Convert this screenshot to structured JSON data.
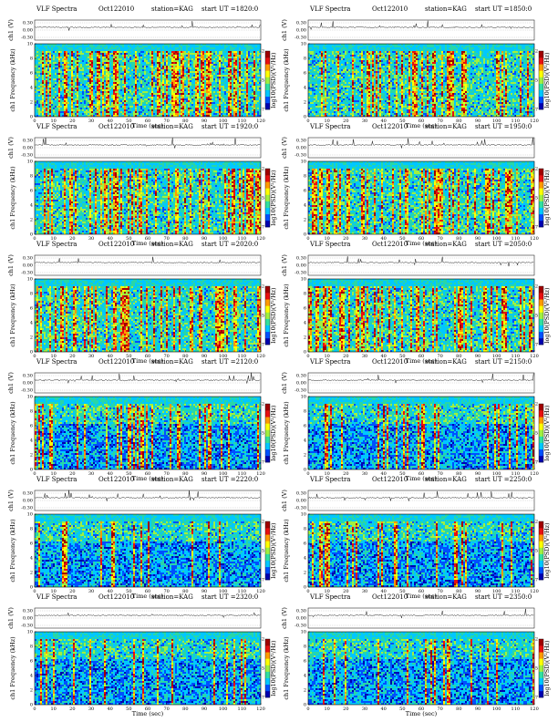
{
  "chart_data": [
    {
      "type": "heatmap",
      "title": "VLF Spectra",
      "date": "Oct122010",
      "station": "station=KAG",
      "start_ut": "start UT =1820:0"
    },
    {
      "type": "heatmap",
      "title": "VLF Spectra",
      "date": "Oct122010",
      "station": "station=KAG",
      "start_ut": "start UT =1850:0"
    },
    {
      "type": "heatmap",
      "title": "VLF Spectra",
      "date": "Oct122010",
      "station": "station=KAG",
      "start_ut": "start UT =1920:0"
    },
    {
      "type": "heatmap",
      "title": "VLF Spectra",
      "date": "Oct122010",
      "station": "station=KAG",
      "start_ut": "start UT =1950:0"
    },
    {
      "type": "heatmap",
      "title": "VLF Spectra",
      "date": "Oct122010",
      "station": "station=KAG",
      "start_ut": "start UT =2020:0"
    },
    {
      "type": "heatmap",
      "title": "VLF Spectra",
      "date": "Oct122010",
      "station": "station=KAG",
      "start_ut": "start UT =2050:0"
    },
    {
      "type": "heatmap",
      "title": "VLF Spectra",
      "date": "Oct122010",
      "station": "station=KAG",
      "start_ut": "start UT =2120:0"
    },
    {
      "type": "heatmap",
      "title": "VLF Spectra",
      "date": "Oct122010",
      "station": "station=KAG",
      "start_ut": "start UT =2150:0"
    },
    {
      "type": "heatmap",
      "title": "VLF Spectra",
      "date": "Oct122010",
      "station": "station=KAG",
      "start_ut": "start UT =2220:0"
    },
    {
      "type": "heatmap",
      "title": "VLF Spectra",
      "date": "Oct122010",
      "station": "station=KAG",
      "start_ut": "start UT =2250:0"
    },
    {
      "type": "heatmap",
      "title": "VLF Spectra",
      "date": "Oct122010",
      "station": "station=KAG",
      "start_ut": "start UT =2320:0"
    },
    {
      "type": "heatmap",
      "title": "VLF Spectra",
      "date": "Oct122010",
      "station": "station=KAG",
      "start_ut": "start UT =2350:0"
    }
  ],
  "shared": {
    "xlabel": "Time (sec)",
    "ylabel_spectrum": "ch1 Frequency (kHz)",
    "ylabel_signal": "ch1 (V)",
    "colorbar_label": "log10(PSD)(V²/Hz)",
    "xlim": [
      0,
      120
    ],
    "x_ticks": [
      "0",
      "10",
      "20",
      "30",
      "40",
      "50",
      "60",
      "70",
      "80",
      "90",
      "100",
      "110",
      "120"
    ],
    "ylim_spectrum": [
      0,
      10
    ],
    "y_ticks_spectrum": [
      "0",
      "2",
      "4",
      "6",
      "8",
      "10"
    ],
    "y_ticks_signal": [
      "0.30",
      "0.00",
      "-0.30"
    ],
    "colorbar_ticks": [
      "-2",
      "-5",
      "-7"
    ],
    "colormap": [
      "#0000b0",
      "#0050ff",
      "#00c8ff",
      "#30e0a0",
      "#a0f040",
      "#ffff00",
      "#ff9a00",
      "#e81010",
      "#a00000"
    ]
  }
}
